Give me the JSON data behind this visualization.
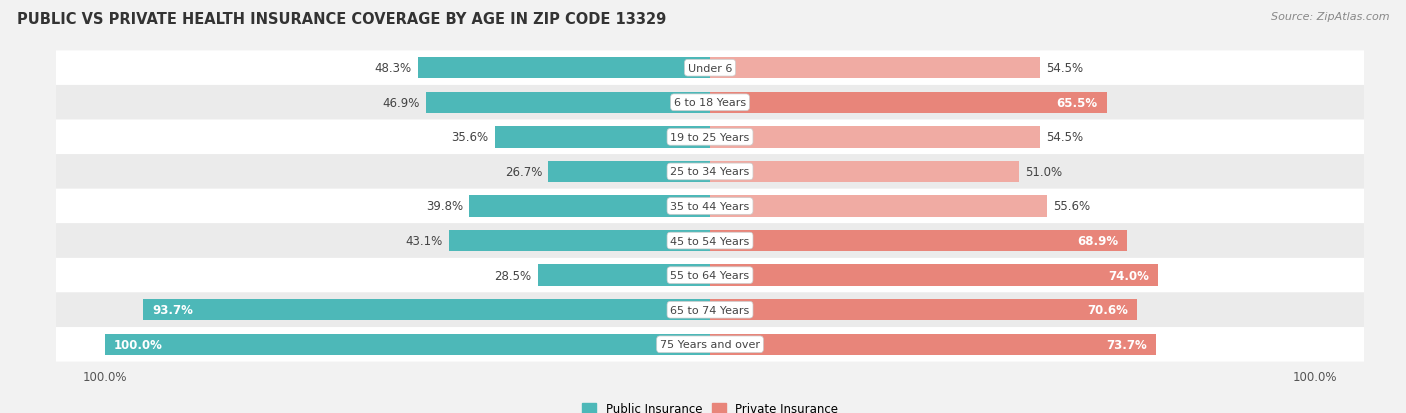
{
  "title": "PUBLIC VS PRIVATE HEALTH INSURANCE COVERAGE BY AGE IN ZIP CODE 13329",
  "source": "Source: ZipAtlas.com",
  "categories": [
    "Under 6",
    "6 to 18 Years",
    "19 to 25 Years",
    "25 to 34 Years",
    "35 to 44 Years",
    "45 to 54 Years",
    "55 to 64 Years",
    "65 to 74 Years",
    "75 Years and over"
  ],
  "public_values": [
    48.3,
    46.9,
    35.6,
    26.7,
    39.8,
    43.1,
    28.5,
    93.7,
    100.0
  ],
  "private_values": [
    54.5,
    65.5,
    54.5,
    51.0,
    55.6,
    68.9,
    74.0,
    70.6,
    73.7
  ],
  "public_color": "#4db8b8",
  "private_color": "#e8857a",
  "private_color_light": "#f0aba3",
  "bg_color": "#f2f2f2",
  "row_colors": [
    "#ffffff",
    "#ebebeb"
  ],
  "bar_height": 0.62,
  "max_value": 100.0,
  "title_fontsize": 10.5,
  "label_fontsize": 8.5,
  "tick_fontsize": 8.5,
  "legend_fontsize": 8.5,
  "white_label_threshold": 60,
  "private_darker_threshold": 60
}
